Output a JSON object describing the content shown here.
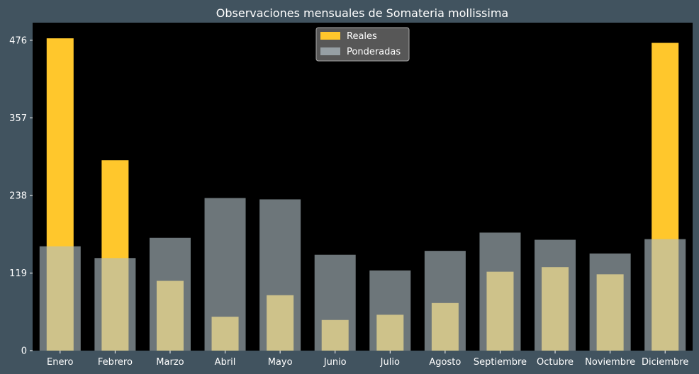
{
  "chart_data": {
    "type": "bar",
    "title": "Observaciones mensuales de Somateria mollissima",
    "categories": [
      "Enero",
      "Febrero",
      "Marzo",
      "Abril",
      "Mayo",
      "Junio",
      "Julio",
      "Agosto",
      "Septiembre",
      "Octubre",
      "Noviembre",
      "Diciembre"
    ],
    "series": [
      {
        "name": "Reales",
        "color": "#ffc72c",
        "values": [
          479,
          292,
          107,
          52,
          85,
          47,
          55,
          73,
          121,
          128,
          117,
          472
        ]
      },
      {
        "name": "Ponderadas",
        "color": "#b0bec5",
        "values": [
          160,
          142,
          173,
          234,
          232,
          147,
          123,
          153,
          181,
          170,
          149,
          171
        ]
      }
    ],
    "yticks": [
      0,
      119,
      238,
      357,
      476
    ],
    "ylim": [
      0,
      503
    ],
    "xlabel": "",
    "ylabel": "",
    "legend_position": "top-center",
    "grid": false,
    "colors": {
      "figure_background": "#41535f",
      "plot_background": "#000000",
      "text": "#ffffff"
    }
  }
}
